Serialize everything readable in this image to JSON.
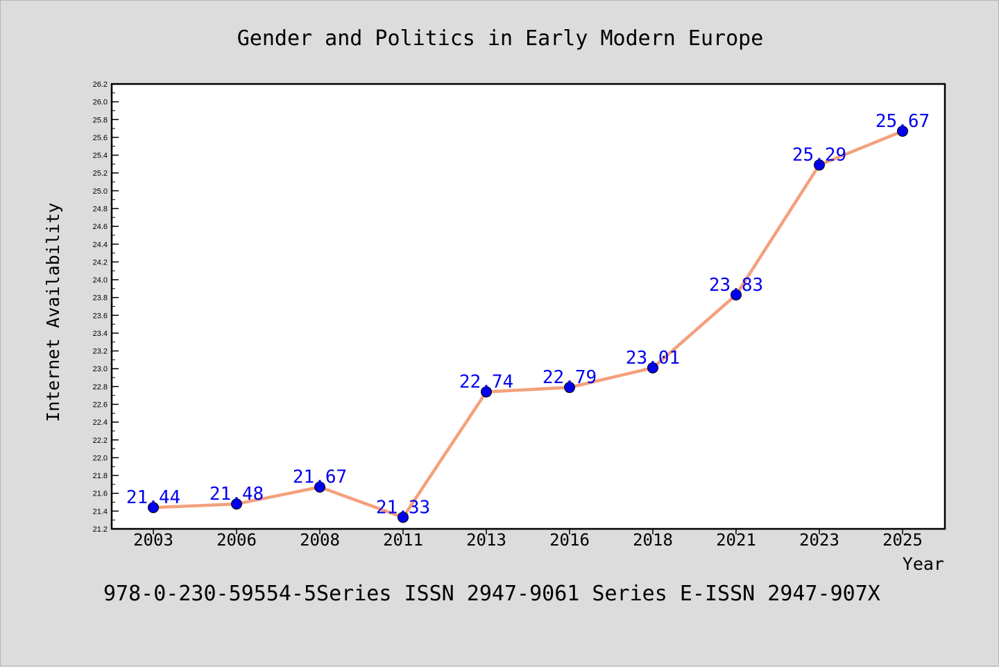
{
  "chart_data": {
    "type": "line",
    "title": "Gender and Politics in Early Modern Europe",
    "xlabel": "Year",
    "ylabel": "Internet Availability",
    "categories": [
      "2003",
      "2006",
      "2008",
      "2011",
      "2013",
      "2016",
      "2018",
      "2021",
      "2023",
      "2025"
    ],
    "series": [
      {
        "values": [
          21.44,
          21.48,
          21.67,
          21.33,
          22.74,
          22.79,
          23.01,
          23.83,
          25.29,
          25.67
        ],
        "data_labels": [
          "21.44",
          "21.48",
          "21.67",
          "21.33",
          "22.74",
          "22.79",
          "23.01",
          "23.83",
          "25.29",
          "25.67"
        ]
      }
    ],
    "ylim": [
      21.2,
      26.2
    ],
    "yticks": [
      "21.2",
      "21.4",
      "21.6",
      "21.8",
      "22.0",
      "22.2",
      "22.4",
      "22.6",
      "22.8",
      "23.0",
      "23.2",
      "23.4",
      "23.6",
      "23.8",
      "24.0",
      "24.2",
      "24.4",
      "24.6",
      "24.8",
      "25.0",
      "25.2",
      "25.4",
      "25.6",
      "25.8",
      "26.0",
      "26.2"
    ],
    "grid": false,
    "legend": "none",
    "colors": {
      "line": "#f4a07c",
      "marker": "#0000ee",
      "data_label": "#0000ee",
      "background": "#dcdcdc",
      "plot_background": "#ffffff"
    }
  },
  "footer_text": "978-0-230-59554-5Series ISSN 2947-9061 Series E-ISSN 2947-907X"
}
